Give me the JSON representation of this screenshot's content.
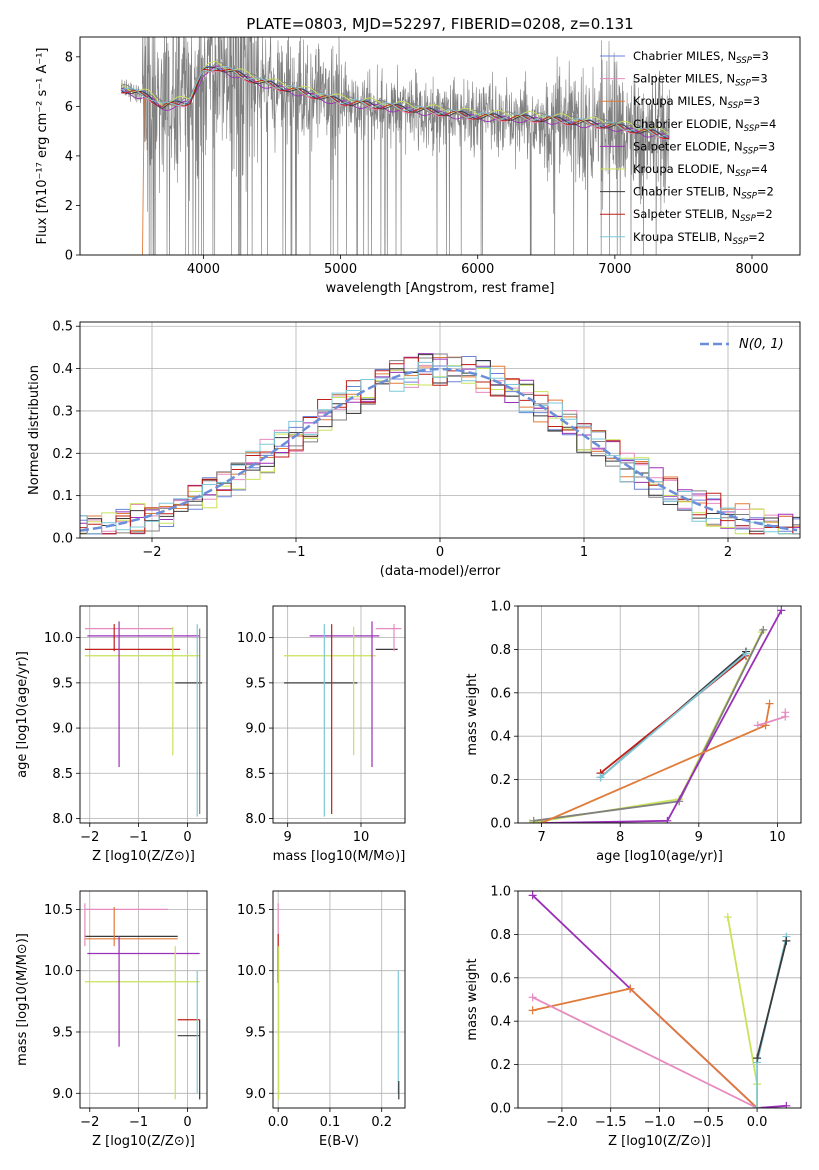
{
  "figure": {
    "title": "PLATE=0803, MJD=52297, FIBERID=0208, z=0.131"
  },
  "legend_entries": [
    {
      "label": "Chabrier MILES, N",
      "sub": "SSP",
      "suffix": "=3",
      "color": "#6a82d8"
    },
    {
      "label": "Salpeter MILES, N",
      "sub": "SSP",
      "suffix": "=3",
      "color": "#e68bc0"
    },
    {
      "label": "Kroupa MILES, N",
      "sub": "SSP",
      "suffix": "=3",
      "color": "#e07b39"
    },
    {
      "label": "Chabrier ELODIE, N",
      "sub": "SSP",
      "suffix": "=4",
      "color": "#808080"
    },
    {
      "label": "Salpeter ELODIE, N",
      "sub": "SSP",
      "suffix": "=3",
      "color": "#9b30b8"
    },
    {
      "label": "Kroupa ELODIE, N",
      "sub": "SSP",
      "suffix": "=4",
      "color": "#c8e35a"
    },
    {
      "label": "Chabrier STELIB, N",
      "sub": "SSP",
      "suffix": "=2",
      "color": "#3a3a3a"
    },
    {
      "label": "Salpeter STELIB, N",
      "sub": "SSP",
      "suffix": "=2",
      "color": "#c0201a"
    },
    {
      "label": "Kroupa STELIB, N",
      "sub": "SSP",
      "suffix": "=2",
      "color": "#7cc8d8"
    }
  ],
  "chart_data": [
    {
      "id": "spectrum",
      "type": "line",
      "xlabel": "wavelength [Angstrom, rest frame]",
      "ylabel": "Flux [fλ10⁻¹⁷ erg cm⁻² s⁻¹ A⁻¹]",
      "xlim": [
        3100,
        8350
      ],
      "ylim": [
        0,
        8.8
      ],
      "xticks": [
        4000,
        5000,
        6000,
        7000,
        8000
      ],
      "yticks": [
        0,
        2,
        4,
        6,
        8
      ],
      "data_range_x": [
        3400,
        7400
      ],
      "continuum_x": [
        3400,
        3600,
        3700,
        3900,
        4000,
        4100,
        4400,
        4700,
        5000,
        5500,
        6000,
        6500,
        7000,
        7400
      ],
      "continuum_y": [
        6.7,
        6.4,
        6.0,
        6.2,
        7.4,
        7.6,
        7.0,
        6.6,
        6.2,
        5.9,
        5.6,
        5.5,
        5.2,
        4.8
      ]
    },
    {
      "id": "residuals",
      "type": "line",
      "xlabel": "(data-model)/error",
      "ylabel": "Normed distribution",
      "legend": "N(0, 1)",
      "xlim": [
        -2.5,
        2.5
      ],
      "ylim": [
        0,
        0.51
      ],
      "xticks": [
        -2,
        -1,
        0,
        1,
        2
      ],
      "yticks": [
        0.0,
        0.1,
        0.2,
        0.3,
        0.4,
        0.5
      ],
      "bin_width": 0.1
    },
    {
      "id": "age_vs_Z",
      "type": "scatter",
      "xlabel": "Z [log10(Z/Z⊙)]",
      "ylabel": "age  [log10(age/yr)]",
      "xlim": [
        -2.2,
        0.4
      ],
      "ylim": [
        7.95,
        10.35
      ],
      "xticks": [
        -2,
        -1,
        0
      ],
      "yticks": [
        8.0,
        8.5,
        9.0,
        9.5,
        10.0
      ],
      "hlines": [
        {
          "y": 10.1,
          "x1": -2.1,
          "x2": -0.3,
          "color": "#e68bc0"
        },
        {
          "y": 10.02,
          "x1": -2.05,
          "x2": 0.25,
          "color": "#9b30b8"
        },
        {
          "y": 9.87,
          "x1": -2.1,
          "x2": -0.15,
          "color": "#c0201a"
        },
        {
          "y": 9.8,
          "x1": -2.1,
          "x2": 0.25,
          "color": "#c8e35a"
        },
        {
          "y": 9.5,
          "x1": -0.25,
          "x2": 0.3,
          "color": "#3a3a3a"
        }
      ],
      "vlines": [
        {
          "x": -1.5,
          "y1": 9.85,
          "y2": 10.15,
          "color": "#c0201a"
        },
        {
          "x": -1.4,
          "y1": 8.57,
          "y2": 10.18,
          "color": "#9b30b8"
        },
        {
          "x": -0.3,
          "y1": 8.7,
          "y2": 10.12,
          "color": "#c8e35a"
        },
        {
          "x": 0.2,
          "y1": 8.02,
          "y2": 10.15,
          "color": "#7cc8d8"
        },
        {
          "x": 0.25,
          "y1": 8.05,
          "y2": 10.1,
          "color": "#808080"
        }
      ]
    },
    {
      "id": "age_vs_mass",
      "type": "scatter",
      "xlabel": "mass [log10(M/M⊙)]",
      "xlim": [
        8.8,
        10.6
      ],
      "ylim": [
        7.95,
        10.35
      ],
      "xticks": [
        9,
        10
      ],
      "yticks": [
        8.0,
        8.5,
        9.0,
        9.5,
        10.0
      ],
      "hlines": [
        {
          "y": 10.1,
          "x1": 10.2,
          "x2": 10.55,
          "color": "#e68bc0"
        },
        {
          "y": 10.02,
          "x1": 9.3,
          "x2": 10.25,
          "color": "#9b30b8"
        },
        {
          "y": 9.87,
          "x1": 10.2,
          "x2": 10.5,
          "color": "#3a3a3a"
        },
        {
          "y": 9.8,
          "x1": 8.95,
          "x2": 10.2,
          "color": "#c8e35a"
        },
        {
          "y": 9.5,
          "x1": 8.95,
          "x2": 9.95,
          "color": "#3a3a3a"
        }
      ],
      "vlines": [
        {
          "x": 9.5,
          "y1": 8.02,
          "y2": 10.15,
          "color": "#7cc8d8"
        },
        {
          "x": 9.6,
          "y1": 8.05,
          "y2": 10.15,
          "color": "#c0201a"
        },
        {
          "x": 9.9,
          "y1": 8.7,
          "y2": 10.12,
          "color": "#c8e35a"
        },
        {
          "x": 10.15,
          "y1": 8.57,
          "y2": 10.18,
          "color": "#9b30b8"
        },
        {
          "x": 10.45,
          "y1": 9.85,
          "y2": 10.15,
          "color": "#e68bc0"
        }
      ]
    },
    {
      "id": "massweight_vs_age",
      "type": "line",
      "xlabel": "age  [log10(age/yr)]",
      "ylabel": "mass weight",
      "xlim": [
        6.7,
        10.3
      ],
      "ylim": [
        0,
        1.0
      ],
      "xticks": [
        7,
        8,
        9,
        10
      ],
      "yticks": [
        0.0,
        0.2,
        0.4,
        0.6,
        0.8,
        1.0
      ],
      "series": [
        {
          "color": "#3a3a3a",
          "x": [
            7.75,
            9.6
          ],
          "y": [
            0.21,
            0.79
          ]
        },
        {
          "color": "#c0201a",
          "x": [
            7.75,
            9.6
          ],
          "y": [
            0.23,
            0.77
          ]
        },
        {
          "color": "#7cc8d8",
          "x": [
            7.75,
            9.6
          ],
          "y": [
            0.21,
            0.78
          ]
        },
        {
          "color": "#c8e35a",
          "x": [
            6.85,
            8.75,
            9.8
          ],
          "y": [
            0.0,
            0.11,
            0.88
          ]
        },
        {
          "color": "#808080",
          "x": [
            6.9,
            8.75,
            9.82
          ],
          "y": [
            0.01,
            0.1,
            0.89
          ]
        },
        {
          "color": "#9b30b8",
          "x": [
            7.0,
            8.6,
            10.05
          ],
          "y": [
            0.0,
            0.01,
            0.98
          ]
        },
        {
          "color": "#e07b39",
          "x": [
            7.0,
            9.85,
            9.9
          ],
          "y": [
            0.0,
            0.45,
            0.55
          ]
        },
        {
          "color": "#e68bc0",
          "x": [
            9.75,
            10.1,
            10.1
          ],
          "y": [
            0.45,
            0.49,
            0.51
          ]
        }
      ]
    },
    {
      "id": "mass_vs_Z",
      "type": "scatter",
      "xlabel": "Z [log10(Z/Z⊙)]",
      "ylabel": "mass [log10(M/M⊙)]",
      "xlim": [
        -2.2,
        0.4
      ],
      "ylim": [
        8.88,
        10.65
      ],
      "xticks": [
        -2,
        -1,
        0
      ],
      "yticks": [
        9.0,
        9.5,
        10.0,
        10.5
      ],
      "hlines": [
        {
          "y": 10.5,
          "x1": -2.1,
          "x2": -0.4,
          "color": "#e68bc0"
        },
        {
          "y": 10.28,
          "x1": -2.1,
          "x2": -0.2,
          "color": "#3a3a3a"
        },
        {
          "y": 10.26,
          "x1": -2.1,
          "x2": -0.2,
          "color": "#e07b39"
        },
        {
          "y": 10.14,
          "x1": -2.05,
          "x2": 0.25,
          "color": "#9b30b8"
        },
        {
          "y": 9.91,
          "x1": -2.1,
          "x2": 0.25,
          "color": "#c8e35a"
        },
        {
          "y": 9.6,
          "x1": -0.2,
          "x2": 0.25,
          "color": "#c0201a"
        },
        {
          "y": 9.47,
          "x1": -0.2,
          "x2": 0.25,
          "color": "#3a3a3a"
        }
      ],
      "vlines": [
        {
          "x": -2.1,
          "y1": 10.2,
          "y2": 10.55,
          "color": "#e68bc0"
        },
        {
          "x": -1.5,
          "y1": 10.2,
          "y2": 10.52,
          "color": "#e07b39"
        },
        {
          "x": -1.4,
          "y1": 9.38,
          "y2": 10.28,
          "color": "#9b30b8"
        },
        {
          "x": -0.25,
          "y1": 8.95,
          "y2": 10.2,
          "color": "#c8e35a"
        },
        {
          "x": 0.2,
          "y1": 9.0,
          "y2": 10.0,
          "color": "#7cc8d8"
        },
        {
          "x": 0.25,
          "y1": 8.95,
          "y2": 9.6,
          "color": "#3a3a3a"
        }
      ]
    },
    {
      "id": "mass_vs_ebv",
      "type": "scatter",
      "xlabel": "E(B-V)",
      "xlim": [
        -0.01,
        0.245
      ],
      "ylim": [
        8.88,
        10.65
      ],
      "xticks": [
        0.0,
        0.1,
        0.2
      ],
      "yticks": [
        9.0,
        9.5,
        10.0,
        10.5
      ],
      "vlines": [
        {
          "x": 0.0,
          "y1": 10.2,
          "y2": 10.55,
          "color": "#e68bc0"
        },
        {
          "x": 0.0,
          "y1": 9.9,
          "y2": 10.3,
          "color": "#c0201a"
        },
        {
          "x": 0.001,
          "y1": 8.95,
          "y2": 10.2,
          "color": "#c8e35a"
        },
        {
          "x": 0.232,
          "y1": 9.0,
          "y2": 10.0,
          "color": "#7cc8d8"
        },
        {
          "x": 0.233,
          "y1": 8.95,
          "y2": 9.1,
          "color": "#3a3a3a"
        }
      ]
    },
    {
      "id": "massweight_vs_Z",
      "type": "line",
      "xlabel": "Z [log10(Z/Z⊙)]",
      "ylabel": "mass weight",
      "xlim": [
        -2.45,
        0.45
      ],
      "ylim": [
        0,
        1.0
      ],
      "xticks": [
        -2.0,
        -1.5,
        -1.0,
        -0.5,
        0.0
      ],
      "yticks": [
        0.0,
        0.2,
        0.4,
        0.6,
        0.8,
        1.0
      ],
      "series": [
        {
          "color": "#9b30b8",
          "x": [
            -2.3,
            -1.3,
            0.0,
            0.3
          ],
          "y": [
            0.98,
            0.55,
            0.0,
            0.01
          ]
        },
        {
          "color": "#e07b39",
          "x": [
            -2.3,
            -1.3,
            0.0
          ],
          "y": [
            0.45,
            0.55,
            0.0
          ]
        },
        {
          "color": "#e68bc0",
          "x": [
            -2.3,
            0.0
          ],
          "y": [
            0.51,
            0.0
          ]
        },
        {
          "color": "#c8e35a",
          "x": [
            -0.3,
            0.0,
            0.0
          ],
          "y": [
            0.88,
            0.11,
            0.0
          ]
        },
        {
          "color": "#7cc8d8",
          "x": [
            0.0,
            0.0,
            0.3
          ],
          "y": [
            0.0,
            0.21,
            0.79
          ]
        },
        {
          "color": "#3a3a3a",
          "x": [
            0.0,
            0.3
          ],
          "y": [
            0.23,
            0.77
          ]
        }
      ]
    }
  ]
}
